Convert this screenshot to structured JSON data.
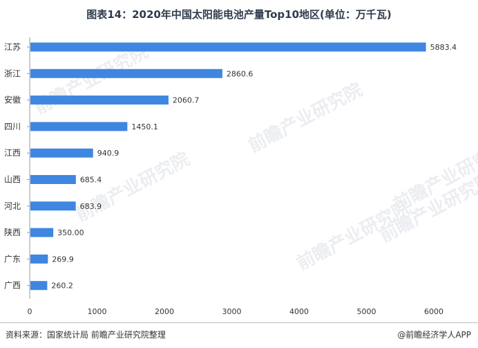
{
  "title": "图表14：2020年中国太阳能电池产量Top10地区(单位：万千瓦)",
  "footer": {
    "source": "资料来源：国家统计局 前瞻产业研究院整理",
    "brand": "@前瞻经济学人APP"
  },
  "watermark": "前瞻产业研究院",
  "colors": {
    "bar": "#3f86e0",
    "axis": "#999999",
    "text": "#333333"
  },
  "chart_data": {
    "type": "bar",
    "orientation": "horizontal",
    "categories": [
      "江苏",
      "浙江",
      "安徽",
      "四川",
      "江西",
      "山西",
      "河北",
      "陕西",
      "广东",
      "广西"
    ],
    "values": [
      5883.4,
      2860.6,
      2060.7,
      1450.1,
      940.9,
      685.4,
      683.9,
      350.0,
      269.9,
      260.2
    ],
    "value_labels": [
      "5883.4",
      "2860.6",
      "2060.7",
      "1450.1",
      "940.9",
      "685.4",
      "683.9",
      "350.00",
      "269.9",
      "260.2"
    ],
    "xlim": [
      0,
      6000
    ],
    "xticks": [
      0,
      1000,
      2000,
      3000,
      4000,
      5000,
      6000
    ],
    "grid": false,
    "legend": "none"
  }
}
